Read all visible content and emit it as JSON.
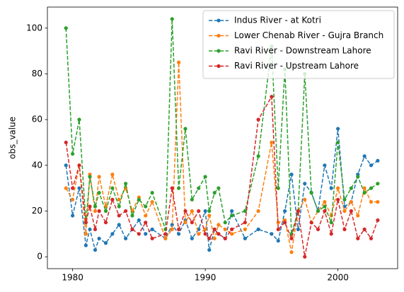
{
  "chart_data": {
    "type": "line",
    "y_label": "obs_value",
    "x": [
      1979.5,
      1980,
      1980.5,
      1981,
      1981.3,
      1981.7,
      1982,
      1982.5,
      1983,
      1983.5,
      1984,
      1984.5,
      1985,
      1985.5,
      1986,
      1987,
      1987.5,
      1988,
      1988.5,
      1989,
      1989.5,
      1990,
      1990.3,
      1990.7,
      1991,
      1991.5,
      1992,
      1993,
      1994,
      1995,
      1995.5,
      1996,
      1996.5,
      1997,
      1997.5,
      1998,
      1998.5,
      1999,
      1999.5,
      2000,
      2000.5,
      2001,
      2001.5,
      2002,
      2002.5,
      2003
    ],
    "xlim": [
      1978.1,
      2004.5
    ],
    "xticks": [
      1980,
      1990,
      2000
    ],
    "ylim": [
      -5.2,
      109.2
    ],
    "yticks": [
      0,
      20,
      40,
      60,
      80,
      100
    ],
    "legend": "upper right",
    "line_style": "dashed",
    "markers": true,
    "series": [
      {
        "name": "Indus River - at Kotri",
        "color": "#1f77b4",
        "values": [
          40,
          18,
          30,
          5,
          12,
          3,
          8,
          6,
          10,
          14,
          8,
          12,
          16,
          10,
          12,
          8,
          14,
          10,
          16,
          8,
          12,
          20,
          3,
          12,
          10,
          8,
          20,
          8,
          12,
          10,
          7,
          20,
          36,
          12,
          32,
          28,
          20,
          40,
          30,
          56,
          22,
          24,
          36,
          44,
          40,
          42
        ]
      },
      {
        "name": "Lower Chenab River - Gujra Branch",
        "color": "#ff7f0e",
        "values": [
          30,
          25,
          40,
          10,
          36,
          20,
          35,
          22,
          36,
          25,
          30,
          20,
          26,
          18,
          24,
          8,
          12,
          85,
          15,
          20,
          10,
          12,
          18,
          8,
          14,
          12,
          10,
          12,
          20,
          50,
          15,
          16,
          2,
          20,
          25,
          15,
          20,
          24,
          18,
          30,
          20,
          24,
          18,
          30,
          24,
          24
        ]
      },
      {
        "name": "Ravi River - Downstream Lahore",
        "color": "#2ca02c",
        "values": [
          100,
          45,
          60,
          15,
          35,
          22,
          28,
          20,
          30,
          22,
          32,
          18,
          25,
          22,
          28,
          12,
          104,
          30,
          56,
          25,
          30,
          35,
          20,
          28,
          30,
          15,
          18,
          20,
          44,
          92,
          30,
          82,
          10,
          20,
          80,
          28,
          20,
          22,
          15,
          50,
          25,
          30,
          35,
          28,
          30,
          32
        ]
      },
      {
        "name": "Ravi River - Upstream Lahore",
        "color": "#d62728",
        "values": [
          50,
          30,
          40,
          15,
          22,
          12,
          20,
          15,
          25,
          18,
          20,
          12,
          10,
          15,
          8,
          10,
          30,
          12,
          20,
          15,
          20,
          10,
          8,
          12,
          10,
          8,
          12,
          15,
          60,
          70,
          12,
          15,
          8,
          20,
          0,
          15,
          12,
          20,
          10,
          25,
          12,
          20,
          8,
          12,
          8,
          16
        ]
      }
    ]
  }
}
